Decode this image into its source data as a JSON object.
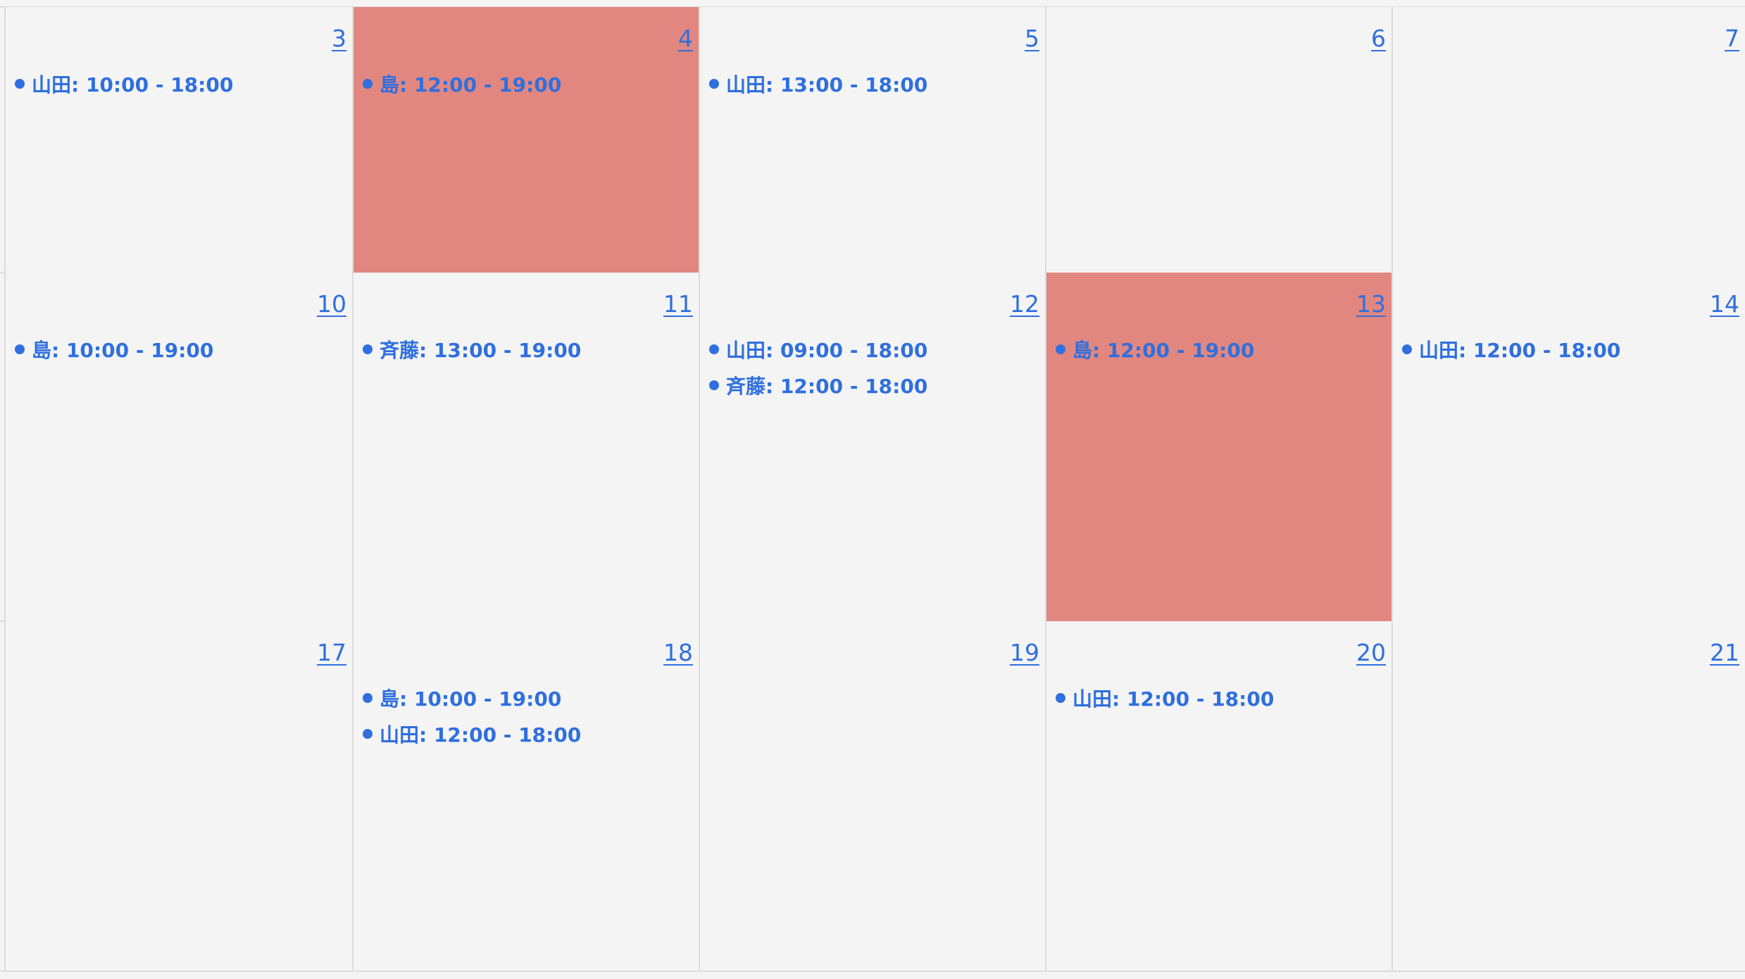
{
  "calendar": {
    "weeks": [
      {
        "days": [
          {
            "number": "3",
            "highlighted": false,
            "events": [
              {
                "label": "山田: 10:00 - 18:00"
              }
            ]
          },
          {
            "number": "4",
            "highlighted": true,
            "events": [
              {
                "label": "島: 12:00 - 19:00"
              }
            ]
          },
          {
            "number": "5",
            "highlighted": false,
            "events": [
              {
                "label": "山田: 13:00 - 18:00"
              }
            ]
          },
          {
            "number": "6",
            "highlighted": false,
            "events": []
          },
          {
            "number": "7",
            "highlighted": false,
            "events": []
          }
        ]
      },
      {
        "days": [
          {
            "number": "10",
            "highlighted": false,
            "events": [
              {
                "label": "島: 10:00 - 19:00"
              }
            ]
          },
          {
            "number": "11",
            "highlighted": false,
            "events": [
              {
                "label": "斉藤: 13:00 - 19:00"
              }
            ]
          },
          {
            "number": "12",
            "highlighted": false,
            "events": [
              {
                "label": "山田: 09:00 - 18:00"
              },
              {
                "label": "斉藤: 12:00 - 18:00"
              }
            ]
          },
          {
            "number": "13",
            "highlighted": true,
            "events": [
              {
                "label": "島: 12:00 - 19:00"
              }
            ]
          },
          {
            "number": "14",
            "highlighted": false,
            "events": [
              {
                "label": "山田: 12:00 - 18:00"
              }
            ]
          }
        ]
      },
      {
        "days": [
          {
            "number": "17",
            "highlighted": false,
            "events": []
          },
          {
            "number": "18",
            "highlighted": false,
            "events": [
              {
                "label": "島: 10:00 - 19:00"
              },
              {
                "label": "山田: 12:00 - 18:00"
              }
            ]
          },
          {
            "number": "19",
            "highlighted": false,
            "events": []
          },
          {
            "number": "20",
            "highlighted": false,
            "events": [
              {
                "label": "山田: 12:00 - 18:00"
              }
            ]
          },
          {
            "number": "21",
            "highlighted": false,
            "events": []
          }
        ]
      }
    ]
  },
  "colors": {
    "background": "#f4f4f4",
    "grid_line": "#dcdcdc",
    "highlight": "#e18780",
    "link": "#2f6fde"
  }
}
